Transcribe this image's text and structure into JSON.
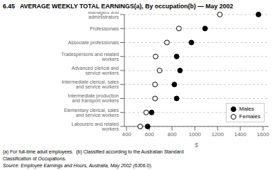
{
  "chart_data": {
    "type": "dot",
    "title": "6.45   AVERAGE WEEKLY TOTAL EARNINGS(a), By occupation(b) — May 2002",
    "categories": [
      "Managers and administrators",
      "Professionals",
      "Associate professionals",
      "Tradespersons and related workers",
      "Advanced clerical and service workers",
      "Intermediate clerical, sales and service workers",
      "Intermediate production and transport workers",
      "Elementary clerical, sales and service workers",
      "Labourers and related workers"
    ],
    "series": [
      {
        "name": "Males",
        "color": "black",
        "values": [
          1560,
          1090,
          970,
          840,
          870,
          820,
          840,
          620,
          585
        ]
      },
      {
        "name": "Females",
        "color": "white",
        "values": [
          1220,
          860,
          755,
          655,
          690,
          650,
          650,
          572,
          520
        ]
      }
    ],
    "xlabel": "$",
    "xlim": [
      380,
      1650
    ],
    "xticks": [
      400,
      600,
      800,
      1000,
      1200,
      1400,
      1600
    ],
    "grid": true,
    "legend": "lower right",
    "footnotes": [
      "(a) For full-time adult employees.  (b) Classified according to the Australian Standard",
      "Classification of Occupations."
    ],
    "source": "Source: Employee Earnings and Hours, Australia, May 2002 (6306.0)."
  }
}
